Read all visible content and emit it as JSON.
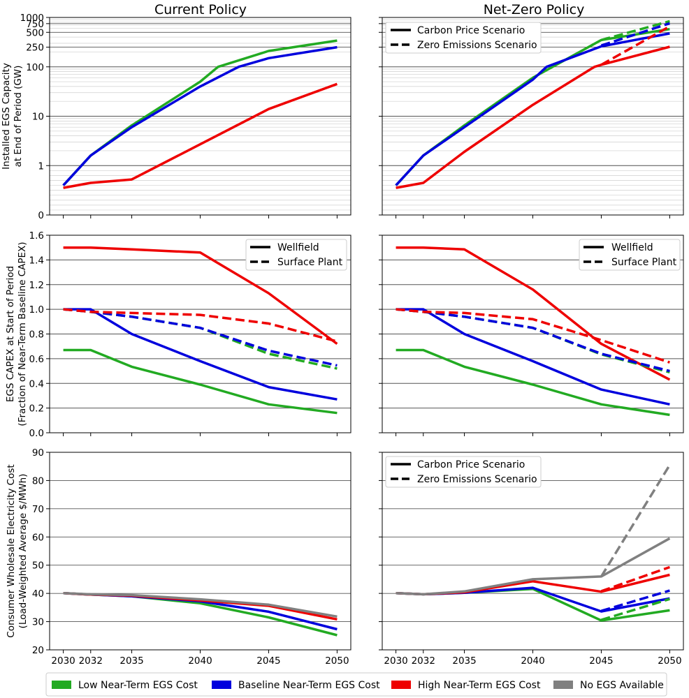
{
  "column_titles": [
    "Current Policy",
    "Net-Zero Policy"
  ],
  "legend_capacity": {
    "solid": "Carbon Price Scenario",
    "dashed": "Zero Emissions Scenario"
  },
  "legend_capex": {
    "solid": "Wellfield",
    "dashed": "Surface Plant"
  },
  "legend_cost": {
    "solid": "Carbon Price Scenario",
    "dashed": "Zero Emissions Scenario"
  },
  "bottom_legend": [
    {
      "label": "Low Near-Term EGS Cost",
      "color": "#22aa22"
    },
    {
      "label": "Baseline Near-Term EGS Cost",
      "color": "#0000dd"
    },
    {
      "label": "High Near-Term EGS Cost",
      "color": "#ee0000"
    },
    {
      "label": "No EGS Available",
      "color": "#808080"
    }
  ],
  "chart_data": [
    {
      "id": "capacity-current",
      "type": "line",
      "title": "Current Policy",
      "ylabel": [
        "Installed EGS Capacity",
        "at End of Period (GW)"
      ],
      "yscale": "symlog",
      "ylim": [
        0,
        1000
      ],
      "yticks": [
        0,
        1,
        10,
        100,
        250,
        500,
        750,
        1000
      ],
      "ytick_labels": [
        "0",
        "1",
        "10",
        "100",
        "250",
        "500",
        "750",
        "1000"
      ],
      "xlim": [
        2029,
        2051
      ],
      "xticks": [
        2030,
        2032,
        2035,
        2040,
        2045,
        2050
      ],
      "show_xtick_labels": false,
      "series": [
        {
          "name": "Low Near-Term EGS Cost",
          "color": "#22aa22",
          "style": "solid",
          "x": [
            2030,
            2032,
            2035,
            2040,
            2041.3,
            2045,
            2050
          ],
          "y": [
            0.6,
            1.6,
            6.5,
            50,
            100,
            210,
            340
          ]
        },
        {
          "name": "Baseline Near-Term EGS Cost",
          "color": "#0000dd",
          "style": "solid",
          "x": [
            2030,
            2032,
            2035,
            2040,
            2042.8,
            2045,
            2050
          ],
          "y": [
            0.6,
            1.6,
            6,
            40,
            100,
            150,
            250
          ]
        },
        {
          "name": "High Near-Term EGS Cost",
          "color": "#ee0000",
          "style": "solid",
          "x": [
            2030,
            2032,
            2035,
            2040,
            2045,
            2050
          ],
          "y": [
            0.55,
            0.65,
            0.72,
            2.7,
            14,
            45
          ]
        }
      ]
    },
    {
      "id": "capacity-netzero",
      "type": "line",
      "title": "Net-Zero Policy",
      "yscale": "symlog",
      "ylim": [
        0,
        1000
      ],
      "yticks": [
        0,
        1,
        10,
        100,
        250,
        500,
        750,
        1000
      ],
      "show_ytick_labels": false,
      "xlim": [
        2029,
        2051
      ],
      "xticks": [
        2030,
        2032,
        2035,
        2040,
        2045,
        2050
      ],
      "show_xtick_labels": false,
      "series": [
        {
          "name": "Low Near-Term EGS Cost",
          "color": "#22aa22",
          "style": "solid",
          "x": [
            2030,
            2032,
            2035,
            2040,
            2045,
            2050
          ],
          "y": [
            0.6,
            1.6,
            6.5,
            60,
            350,
            580
          ]
        },
        {
          "name": "Baseline Near-Term EGS Cost",
          "color": "#0000dd",
          "style": "solid",
          "x": [
            2030,
            2032,
            2035,
            2040,
            2041,
            2045,
            2050
          ],
          "y": [
            0.6,
            1.6,
            6,
            55,
            100,
            260,
            475
          ]
        },
        {
          "name": "High Near-Term EGS Cost",
          "color": "#ee0000",
          "style": "solid",
          "x": [
            2030,
            2032,
            2035,
            2040,
            2044.5,
            2045,
            2050
          ],
          "y": [
            0.55,
            0.65,
            1.9,
            17,
            100,
            110,
            255
          ]
        },
        {
          "name": "Low Near-Term EGS Cost",
          "color": "#22aa22",
          "style": "dashed",
          "x": [
            2045,
            2050
          ],
          "y": [
            350,
            840
          ]
        },
        {
          "name": "Baseline Near-Term EGS Cost",
          "color": "#0000dd",
          "style": "dashed",
          "x": [
            2045,
            2050
          ],
          "y": [
            270,
            760
          ]
        },
        {
          "name": "High Near-Term EGS Cost",
          "color": "#ee0000",
          "style": "dashed",
          "x": [
            2045,
            2050
          ],
          "y": [
            110,
            660
          ]
        }
      ]
    },
    {
      "id": "capex-current",
      "type": "line",
      "ylabel": [
        "EGS CAPEX at Start of Period",
        "(Fraction of Near-Term Baseline CAPEX)"
      ],
      "yscale": "linear",
      "ylim": [
        0,
        1.6
      ],
      "yticks": [
        0,
        0.2,
        0.4,
        0.6,
        0.8,
        1.0,
        1.2,
        1.4,
        1.6
      ],
      "ytick_labels": [
        "0.0",
        "0.2",
        "0.4",
        "0.6",
        "0.8",
        "1.0",
        "1.2",
        "1.4",
        "1.6"
      ],
      "xlim": [
        2029,
        2051
      ],
      "xticks": [
        2030,
        2032,
        2035,
        2040,
        2045,
        2050
      ],
      "show_xtick_labels": false,
      "series": [
        {
          "name": "Low Wellfield",
          "color": "#22aa22",
          "style": "solid",
          "x": [
            2030,
            2032,
            2035,
            2040,
            2045,
            2050
          ],
          "y": [
            0.67,
            0.67,
            0.535,
            0.39,
            0.23,
            0.16
          ]
        },
        {
          "name": "Baseline Wellfield",
          "color": "#0000dd",
          "style": "solid",
          "x": [
            2030,
            2032,
            2035,
            2040,
            2045,
            2050
          ],
          "y": [
            1.0,
            1.0,
            0.8,
            0.58,
            0.37,
            0.27
          ]
        },
        {
          "name": "High Wellfield",
          "color": "#ee0000",
          "style": "solid",
          "x": [
            2030,
            2032,
            2035,
            2040,
            2045,
            2050
          ],
          "y": [
            1.5,
            1.5,
            1.485,
            1.46,
            1.13,
            0.72
          ]
        },
        {
          "name": "Low Surface Plant",
          "color": "#22aa22",
          "style": "dashed",
          "x": [
            2030,
            2032,
            2035,
            2040,
            2045,
            2050
          ],
          "y": [
            1.0,
            0.98,
            0.94,
            0.85,
            0.64,
            0.52
          ]
        },
        {
          "name": "Baseline Surface Plant",
          "color": "#0000dd",
          "style": "dashed",
          "x": [
            2030,
            2032,
            2035,
            2040,
            2045,
            2050
          ],
          "y": [
            1.0,
            0.98,
            0.94,
            0.85,
            0.665,
            0.545
          ]
        },
        {
          "name": "High Surface Plant",
          "color": "#ee0000",
          "style": "dashed",
          "x": [
            2030,
            2032,
            2035,
            2040,
            2045,
            2050
          ],
          "y": [
            1.0,
            0.98,
            0.97,
            0.955,
            0.885,
            0.74
          ]
        }
      ]
    },
    {
      "id": "capex-netzero",
      "type": "line",
      "yscale": "linear",
      "ylim": [
        0,
        1.6
      ],
      "yticks": [
        0,
        0.2,
        0.4,
        0.6,
        0.8,
        1.0,
        1.2,
        1.4,
        1.6
      ],
      "show_ytick_labels": false,
      "xlim": [
        2029,
        2051
      ],
      "xticks": [
        2030,
        2032,
        2035,
        2040,
        2045,
        2050
      ],
      "show_xtick_labels": false,
      "series": [
        {
          "name": "Low Wellfield",
          "color": "#22aa22",
          "style": "solid",
          "x": [
            2030,
            2032,
            2035,
            2040,
            2045,
            2050
          ],
          "y": [
            0.67,
            0.67,
            0.535,
            0.39,
            0.23,
            0.145
          ]
        },
        {
          "name": "Baseline Wellfield",
          "color": "#0000dd",
          "style": "solid",
          "x": [
            2030,
            2032,
            2035,
            2040,
            2045,
            2050
          ],
          "y": [
            1.0,
            1.0,
            0.8,
            0.58,
            0.35,
            0.23
          ]
        },
        {
          "name": "High Wellfield",
          "color": "#ee0000",
          "style": "solid",
          "x": [
            2030,
            2032,
            2035,
            2040,
            2045,
            2050
          ],
          "y": [
            1.5,
            1.5,
            1.485,
            1.16,
            0.72,
            0.43
          ]
        },
        {
          "name": "Low Surface Plant",
          "color": "#22aa22",
          "style": "dashed",
          "x": [
            2030,
            2032,
            2035,
            2040,
            2045,
            2050
          ],
          "y": [
            1.0,
            0.98,
            0.94,
            0.85,
            0.635,
            0.49
          ]
        },
        {
          "name": "Baseline Surface Plant",
          "color": "#0000dd",
          "style": "dashed",
          "x": [
            2030,
            2032,
            2035,
            2040,
            2045,
            2050
          ],
          "y": [
            1.0,
            0.98,
            0.94,
            0.85,
            0.64,
            0.5
          ]
        },
        {
          "name": "High Surface Plant",
          "color": "#ee0000",
          "style": "dashed",
          "x": [
            2030,
            2032,
            2035,
            2040,
            2045,
            2050
          ],
          "y": [
            1.0,
            0.98,
            0.97,
            0.92,
            0.75,
            0.57
          ]
        }
      ]
    },
    {
      "id": "cost-current",
      "type": "line",
      "ylabel": [
        "Consumer Wholesale Electricity Cost",
        "(Load-Weighted Average $/MWh)"
      ],
      "yscale": "linear",
      "ylim": [
        20,
        90
      ],
      "yticks": [
        20,
        30,
        40,
        50,
        60,
        70,
        80,
        90
      ],
      "ytick_labels": [
        "20",
        "30",
        "40",
        "50",
        "60",
        "70",
        "80",
        "90"
      ],
      "xlim": [
        2029,
        2051
      ],
      "xticks": [
        2030,
        2032,
        2035,
        2040,
        2045,
        2050
      ],
      "xtick_labels": [
        "2030",
        "2032",
        "2035",
        "2040",
        "2045",
        "2050"
      ],
      "series": [
        {
          "name": "Low Near-Term EGS Cost",
          "color": "#22aa22",
          "style": "solid",
          "x": [
            2030,
            2032,
            2035,
            2040,
            2045,
            2050
          ],
          "y": [
            40.1,
            39.6,
            39,
            36.5,
            31.5,
            25.2
          ]
        },
        {
          "name": "Baseline Near-Term EGS Cost",
          "color": "#0000dd",
          "style": "solid",
          "x": [
            2030,
            2032,
            2035,
            2040,
            2045,
            2050
          ],
          "y": [
            40.1,
            39.6,
            39,
            37.2,
            33.5,
            27.3
          ]
        },
        {
          "name": "High Near-Term EGS Cost",
          "color": "#ee0000",
          "style": "solid",
          "x": [
            2030,
            2032,
            2035,
            2040,
            2045,
            2050
          ],
          "y": [
            40.1,
            39.6,
            39.2,
            37.5,
            35.6,
            30.8
          ]
        },
        {
          "name": "No EGS Available",
          "color": "#808080",
          "style": "solid",
          "x": [
            2030,
            2032,
            2035,
            2040,
            2045,
            2050
          ],
          "y": [
            40.1,
            39.7,
            39.4,
            37.9,
            36,
            31.8
          ]
        }
      ]
    },
    {
      "id": "cost-netzero",
      "type": "line",
      "yscale": "linear",
      "ylim": [
        20,
        90
      ],
      "yticks": [
        20,
        30,
        40,
        50,
        60,
        70,
        80,
        90
      ],
      "show_ytick_labels": false,
      "xlim": [
        2029,
        2051
      ],
      "xticks": [
        2030,
        2032,
        2035,
        2040,
        2045,
        2050
      ],
      "xtick_labels": [
        "2030",
        "2032",
        "2035",
        "2040",
        "2045",
        "2050"
      ],
      "series": [
        {
          "name": "Low Near-Term EGS Cost",
          "color": "#22aa22",
          "style": "solid",
          "x": [
            2030,
            2032,
            2035,
            2040,
            2045,
            2050
          ],
          "y": [
            40.1,
            39.7,
            40.2,
            41.6,
            30.4,
            34
          ]
        },
        {
          "name": "Baseline Near-Term EGS Cost",
          "color": "#0000dd",
          "style": "solid",
          "x": [
            2030,
            2032,
            2035,
            2040,
            2045,
            2050
          ],
          "y": [
            40.1,
            39.7,
            40.2,
            42,
            33.6,
            38.2
          ]
        },
        {
          "name": "High Near-Term EGS Cost",
          "color": "#ee0000",
          "style": "solid",
          "x": [
            2030,
            2032,
            2035,
            2040,
            2045,
            2050
          ],
          "y": [
            40.1,
            39.7,
            40.4,
            44.3,
            40.6,
            46.6
          ]
        },
        {
          "name": "No EGS Available",
          "color": "#808080",
          "style": "solid",
          "x": [
            2030,
            2032,
            2035,
            2040,
            2045,
            2050
          ],
          "y": [
            40.1,
            39.7,
            40.7,
            45,
            46,
            59.5
          ]
        },
        {
          "name": "Low Near-Term EGS Cost",
          "color": "#22aa22",
          "style": "dashed",
          "x": [
            2045,
            2050
          ],
          "y": [
            30.6,
            38
          ]
        },
        {
          "name": "Baseline Near-Term EGS Cost",
          "color": "#0000dd",
          "style": "dashed",
          "x": [
            2045,
            2050
          ],
          "y": [
            33.8,
            41
          ]
        },
        {
          "name": "High Near-Term EGS Cost",
          "color": "#ee0000",
          "style": "dashed",
          "x": [
            2045,
            2050
          ],
          "y": [
            40.8,
            49.3
          ]
        },
        {
          "name": "No EGS Available",
          "color": "#808080",
          "style": "dashed",
          "x": [
            2045,
            2050
          ],
          "y": [
            46,
            85.5
          ]
        }
      ]
    }
  ]
}
